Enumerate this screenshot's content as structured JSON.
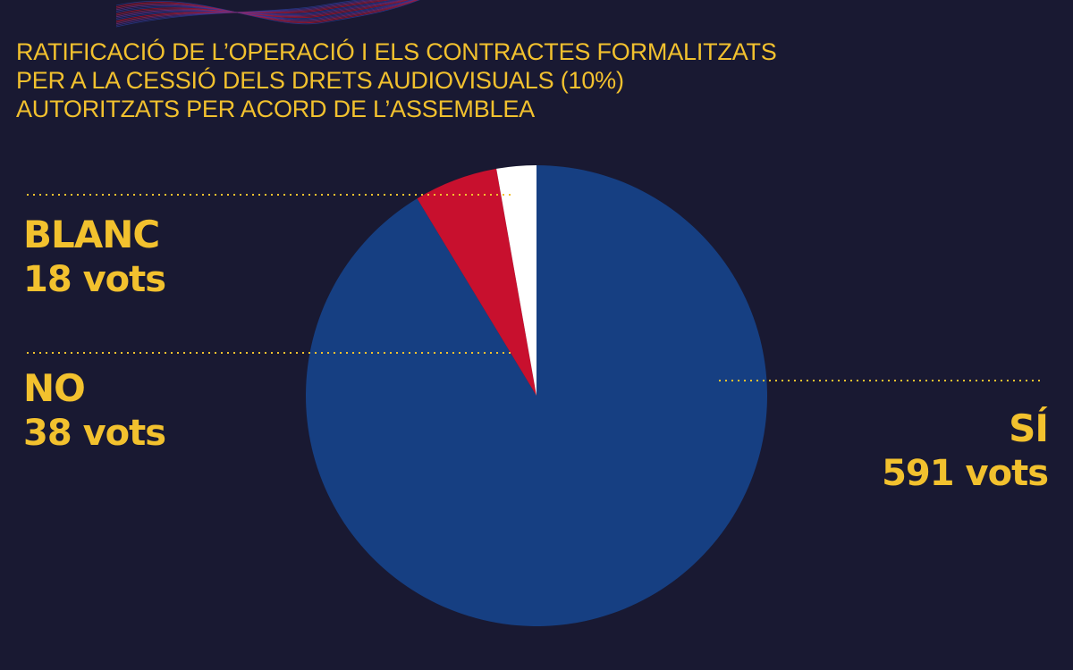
{
  "title_lines": [
    "RATIFICACIÓ DE L’OPERACIÓ I ELS CONTRACTES FORMALITZATS",
    "PER A LA CESSIÓ DELS DRETS AUDIOVISUALS (10%)",
    "AUTORITZATS PER ACORD DE L’ASSEMBLEA"
  ],
  "labels": {
    "blanc": {
      "name": "BLANC",
      "votes": "18 vots"
    },
    "no": {
      "name": "NO",
      "votes": "38 vots"
    },
    "si": {
      "name": "SÍ",
      "votes": "591 vots"
    }
  },
  "colors": {
    "background": "#191932",
    "accent": "#f2c12e",
    "si": "#163f82",
    "no": "#c8102e",
    "blanc": "#ffffff"
  },
  "chart_data": {
    "type": "pie",
    "categories": [
      "SÍ",
      "NO",
      "BLANC"
    ],
    "values": [
      591,
      38,
      18
    ],
    "unit": "vots",
    "start": "12 o'clock",
    "direction": "clockwise",
    "legend": "outside labels with dotted leader lines"
  }
}
